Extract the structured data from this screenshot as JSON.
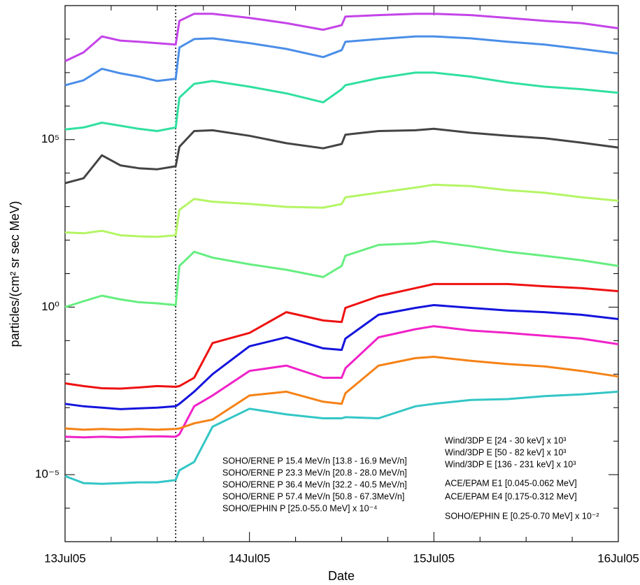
{
  "chart_data": {
    "type": "line",
    "xlabel": "Date",
    "ylabel": "particles/(cm² sr sec MeV)",
    "ylog": true,
    "ylim": [
      1e-07,
      1000000000.0
    ],
    "yticks": [
      {
        "value": 1e-05,
        "label": "10⁻⁵"
      },
      {
        "value": 1,
        "label": "10⁰"
      },
      {
        "value": 100000.0,
        "label": "10⁵"
      }
    ],
    "yminorticks": [
      1e-06,
      0.0001,
      0.001,
      0.01,
      0.1,
      10,
      100,
      1000,
      10000.0,
      1000000.0,
      10000000.0,
      100000000.0
    ],
    "xlim": [
      0,
      3
    ],
    "xticks": [
      {
        "value": 0,
        "label": "13Jul05"
      },
      {
        "value": 1,
        "label": "14Jul05"
      },
      {
        "value": 2,
        "label": "15Jul05"
      },
      {
        "value": 3,
        "label": "16Jul05"
      }
    ],
    "xminorticks": [
      0.25,
      0.5,
      0.75,
      1.25,
      1.5,
      1.75,
      2.25,
      2.5,
      2.75
    ],
    "vlines": [
      0.6
    ],
    "x": [
      0,
      0.1,
      0.2,
      0.3,
      0.4,
      0.5,
      0.6,
      0.62,
      0.7,
      0.8,
      1.0,
      1.2,
      1.4,
      1.5,
      1.52,
      1.7,
      1.9,
      2.0,
      2.2,
      2.4,
      2.6,
      2.8,
      3.0
    ],
    "series": [
      {
        "name": "Wind/3DP E [24 - 30 keV] x 10³",
        "color": "#c444e8",
        "values": [
          22000000.0,
          40000000.0,
          120000000.0,
          90000000.0,
          83000000.0,
          76000000.0,
          69000000.0,
          350000000.0,
          570000000.0,
          570000000.0,
          430000000.0,
          300000000.0,
          190000000.0,
          260000000.0,
          470000000.0,
          520000000.0,
          570000000.0,
          570000000.0,
          520000000.0,
          430000000.0,
          350000000.0,
          300000000.0,
          210000000.0
        ]
      },
      {
        "name": "Wind/3DP E [50 - 82 keV] x 10³",
        "color": "#4a8ee8",
        "values": [
          4200000.0,
          5900000.0,
          13000000.0,
          9500000.0,
          7600000.0,
          5600000.0,
          6500000.0,
          56000000.0,
          100000000.0,
          105000000.0,
          76000000.0,
          51000000.0,
          29000000.0,
          47000000.0,
          83000000.0,
          100000000.0,
          120000000.0,
          120000000.0,
          105000000.0,
          83000000.0,
          69000000.0,
          51000000.0,
          37000000.0
        ]
      },
      {
        "name": "Wind/3DP E [136 - 231 keV] x 10³",
        "color": "#30e0a0",
        "values": [
          200000.0,
          230000.0,
          320000.0,
          260000.0,
          210000.0,
          180000.0,
          230000.0,
          1800000.0,
          4600000.0,
          5600000.0,
          3800000.0,
          2400000.0,
          1300000.0,
          3200000.0,
          4200000.0,
          6800000.0,
          10000000.0,
          10000000.0,
          7600000.0,
          5100000.0,
          3800000.0,
          3200000.0,
          2500000.0
        ]
      },
      {
        "name": "ACE/EPAM E1 [0.045-0.062 MeV]",
        "color": "#444444",
        "values": [
          5000.0,
          7000.0,
          34000.0,
          17000.0,
          14000.0,
          13000.0,
          16000.0,
          61000.0,
          180000.0,
          190000.0,
          130000.0,
          78000.0,
          55000.0,
          74000.0,
          140000.0,
          180000.0,
          190000.0,
          210000.0,
          160000.0,
          130000.0,
          110000.0,
          81000.0,
          58000.0
        ]
      },
      {
        "name": "ACE/EPAM E4 [0.175-0.312 MeV]",
        "color": "#b4f564",
        "values": [
          170,
          160,
          190,
          140,
          130,
          125,
          140,
          800,
          1700,
          1400,
          1200,
          980,
          930,
          1200,
          1900,
          2600,
          3700,
          4500,
          4100,
          3100,
          2600,
          1900,
          1500
        ]
      },
      {
        "name": "SOHO/EPHIN E [0.25-0.70 MeV] x 10⁻²",
        "color": "#66ee80",
        "values": [
          1.0,
          1.5,
          2.2,
          1.7,
          1.4,
          1.3,
          1.15,
          17,
          45,
          30,
          19,
          13,
          7.9,
          17,
          34,
          72,
          80,
          92,
          66,
          45,
          34,
          25,
          17
        ]
      },
      {
        "name": "SOHO/ERNE P 15.4 MeV/n [13.8 - 16.9 MeV/n]",
        "color": "#ee1111",
        "values": [
          0.0053,
          0.0044,
          0.0038,
          0.0037,
          0.004,
          0.0044,
          0.0042,
          0.0044,
          0.0078,
          0.085,
          0.17,
          0.71,
          0.4,
          0.36,
          0.95,
          2.1,
          3.7,
          4.9,
          4.9,
          4.9,
          4.2,
          3.7,
          3.0
        ]
      },
      {
        "name": "SOHO/ERNE P 23.3 MeV/n [20.8 - 28.0 MeV/n]",
        "color": "#1414dd",
        "values": [
          0.0013,
          0.0011,
          0.001,
          0.0009,
          0.00095,
          0.001,
          0.0011,
          0.0013,
          0.003,
          0.01,
          0.068,
          0.126,
          0.059,
          0.053,
          0.115,
          0.59,
          0.95,
          1.15,
          0.95,
          0.79,
          0.71,
          0.59,
          0.44
        ]
      },
      {
        "name": "SOHO/ERNE P 36.4 MeV/n [32.2 - 40.5 MeV/n]",
        "color": "#f022c8",
        "values": [
          0.000135,
          0.00013,
          0.000135,
          0.00013,
          0.000135,
          0.00014,
          0.000135,
          0.00016,
          0.0011,
          0.0023,
          0.0125,
          0.018,
          0.0078,
          0.0078,
          0.015,
          0.126,
          0.22,
          0.27,
          0.2,
          0.17,
          0.14,
          0.115,
          0.078
        ]
      },
      {
        "name": "SOHO/ERNE P 57.4 MeV/n [50.8 - 67.3MeV/n]",
        "color": "#f58216",
        "values": [
          0.00024,
          0.00022,
          0.00023,
          0.00022,
          0.00023,
          0.00022,
          0.00023,
          0.00024,
          0.00034,
          0.00044,
          0.0023,
          0.003,
          0.0015,
          0.0013,
          0.0027,
          0.018,
          0.03,
          0.033,
          0.025,
          0.02,
          0.017,
          0.0125,
          0.0085
        ]
      },
      {
        "name": "SOHO/EPHIN P [25.0-55.0 MeV] x 10⁻⁴",
        "color": "#33c6c6",
        "values": [
          9.1e-06,
          5.6e-06,
          5.3e-06,
          5.6e-06,
          5.9e-06,
          5.9e-06,
          6.9e-06,
          1.35e-05,
          2.4e-05,
          0.00027,
          0.00093,
          0.00063,
          0.00048,
          0.00048,
          0.00052,
          0.00048,
          0.0011,
          0.0013,
          0.0017,
          0.0018,
          0.0022,
          0.0025,
          0.003
        ]
      }
    ]
  }
}
